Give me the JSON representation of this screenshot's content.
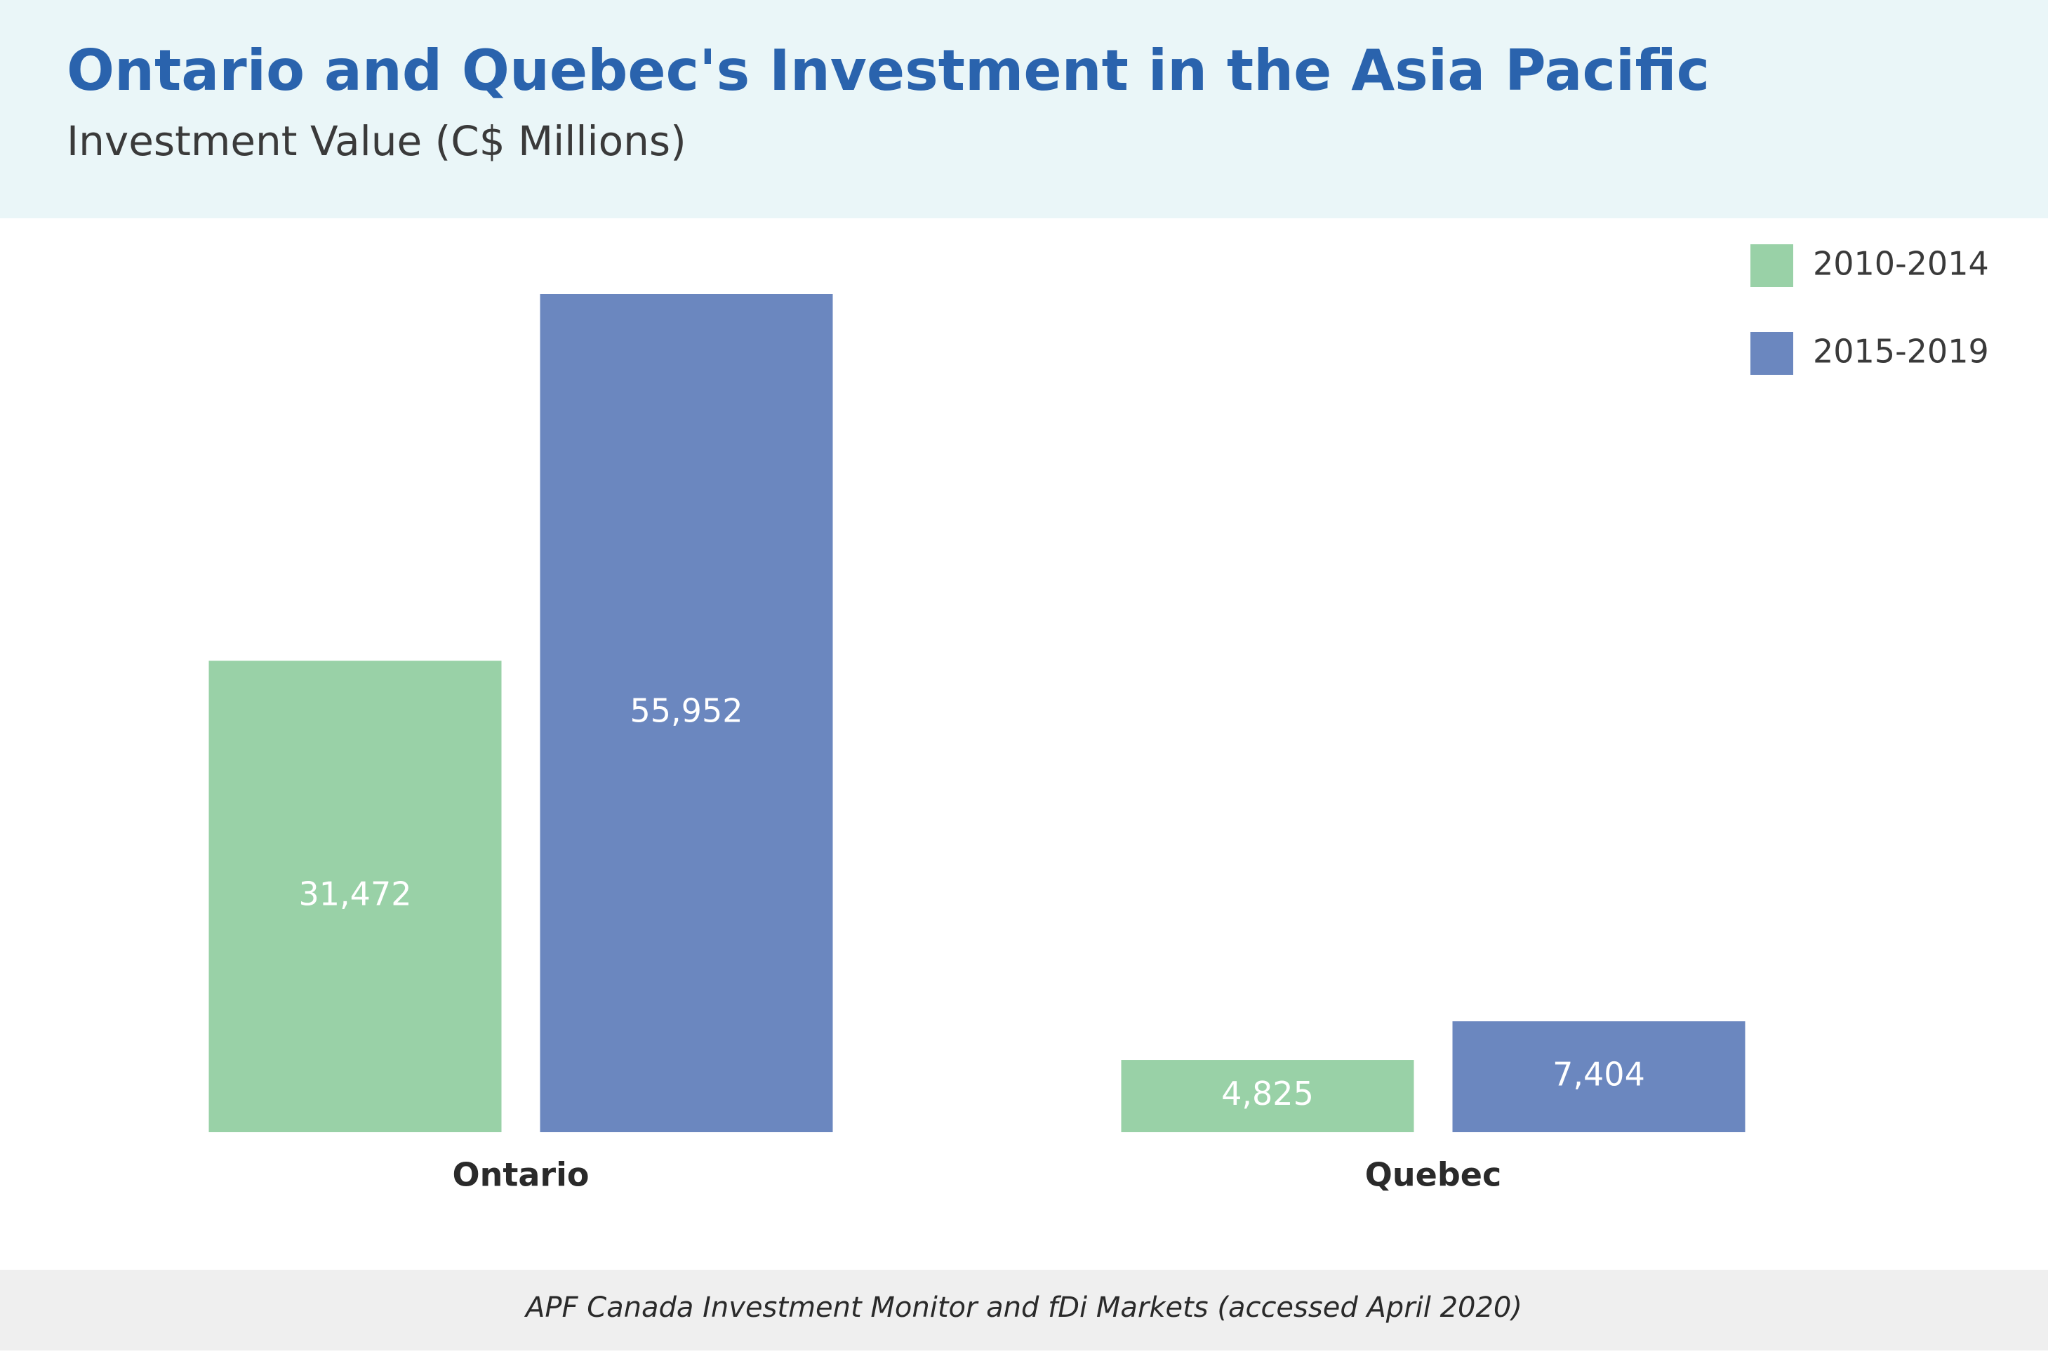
{
  "chart_data": {
    "type": "bar",
    "title": "Ontario and Quebec's Investment in the Asia Pacific",
    "subtitle": "Investment Value (C$ Millions)",
    "source": "APF Canada Investment Monitor and fDi Markets (accessed April 2020)",
    "categories": [
      "Ontario",
      "Quebec"
    ],
    "series": [
      {
        "name": "2010-2014",
        "color": "#99d1a7",
        "values": [
          31472,
          4825
        ],
        "value_labels": [
          "31,472",
          "4,825"
        ]
      },
      {
        "name": "2015-2019",
        "color": "#6b87bf",
        "values": [
          55952,
          7404
        ],
        "value_labels": [
          "55,952",
          "7,404"
        ]
      }
    ],
    "legend": "top-right"
  }
}
